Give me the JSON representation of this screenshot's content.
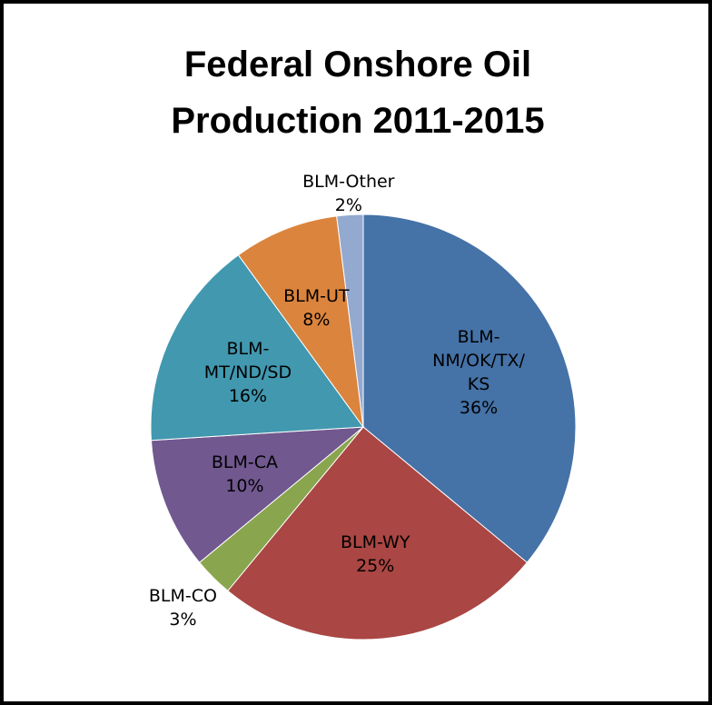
{
  "chart_data": {
    "type": "pie",
    "title": "Federal Onshore Oil Production 2011-2015",
    "categories": [
      "BLM-\nNM/OK/TX/\nKS",
      "BLM-WY",
      "BLM-CO",
      "BLM-CA",
      "BLM-\nMT/ND/SD",
      "BLM-UT",
      "BLM-Other"
    ],
    "values": [
      36,
      25,
      3,
      10,
      16,
      8,
      2
    ],
    "value_labels": [
      "36%",
      "25%",
      "3%",
      "10%",
      "16%",
      "8%",
      "2%"
    ],
    "colors": [
      "#4572a7",
      "#aa4643",
      "#89a54e",
      "#71588f",
      "#4198af",
      "#db843d",
      "#93a9cf"
    ]
  }
}
